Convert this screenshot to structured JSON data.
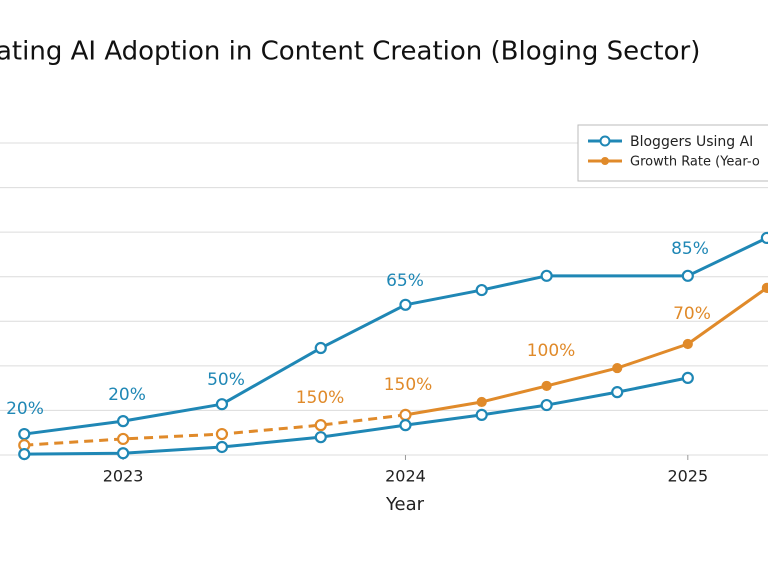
{
  "chart_data": {
    "type": "line",
    "title": "ating AI Adoption in Content Creation (Bloging Sector)",
    "x_label": "Year",
    "xlim": [
      2022.564,
      2025.284
    ],
    "xticks": [
      2023,
      2024,
      2025
    ],
    "ylim": [
      0,
      7
    ],
    "yticks": [
      0,
      1,
      2,
      3,
      4,
      5,
      6,
      7
    ],
    "grid": true,
    "legend": "upper right",
    "series": [
      {
        "name": "Bloggers Using AI",
        "color": "#1f87b5",
        "marker": "open",
        "x": [
          2022.65,
          2023,
          2023.35,
          2023.7,
          2024,
          2024.27,
          2024.5,
          2025,
          2025.28
        ],
        "values": [
          0.47,
          0.76,
          1.14,
          2.4,
          3.37,
          3.7,
          4.02,
          4.02,
          4.87
        ]
      },
      {
        "name": "Growth Rate (Year-o",
        "color": "#e08a2a",
        "marker": "dot",
        "dash_until": 2024,
        "x": [
          2022.65,
          2023,
          2023.35,
          2023.7,
          2024,
          2024.27,
          2024.5,
          2024.75,
          2025,
          2025.28
        ],
        "values": [
          0.22,
          0.36,
          0.47,
          0.67,
          0.9,
          1.19,
          1.55,
          1.95,
          2.49,
          3.75
        ]
      },
      {
        "color": "#1f87b5",
        "marker": "open",
        "x": [
          2022.65,
          2023,
          2023.35,
          2023.7,
          2024,
          2024.27,
          2024.5,
          2024.75,
          2025
        ],
        "values": [
          0.02,
          0.04,
          0.18,
          0.4,
          0.67,
          0.9,
          1.12,
          1.41,
          1.73
        ]
      }
    ],
    "annotations": [
      {
        "text": "20%",
        "color": "#1f87b5"
      },
      {
        "text": "20%",
        "color": "#1f87b5"
      },
      {
        "text": "50%",
        "color": "#1f87b5"
      },
      {
        "text": "65%",
        "color": "#1f87b5"
      },
      {
        "text": "85%",
        "color": "#1f87b5"
      },
      {
        "text": "150%",
        "color": "#e08a2a"
      },
      {
        "text": "150%",
        "color": "#e08a2a"
      },
      {
        "text": "100%",
        "color": "#e08a2a"
      },
      {
        "text": "70%",
        "color": "#e08a2a"
      }
    ]
  }
}
